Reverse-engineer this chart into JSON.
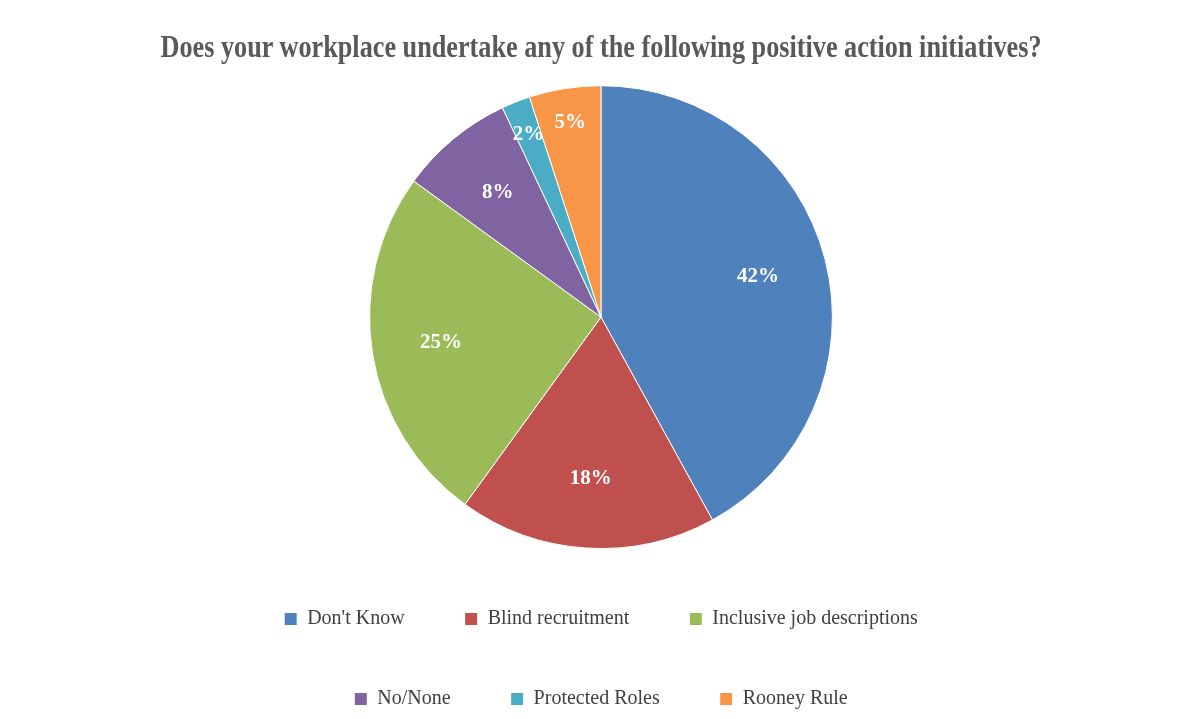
{
  "chart_data": {
    "type": "pie",
    "title": "Does your workplace undertake any of the following positive action initiatives?",
    "categories": [
      "Don't Know",
      "Blind recruitment",
      "Inclusive job descriptions",
      "No/None",
      "Protected Roles",
      "Rooney Rule"
    ],
    "values": [
      42,
      18,
      25,
      8,
      2,
      5
    ],
    "colors": [
      "#4f81bd",
      "#c0504d",
      "#9bbb59",
      "#8064a2",
      "#4bacc6",
      "#f79646"
    ],
    "value_labels": [
      "42%",
      "18%",
      "25%",
      "8%",
      "2%",
      "5%"
    ],
    "legend": "bottom"
  }
}
